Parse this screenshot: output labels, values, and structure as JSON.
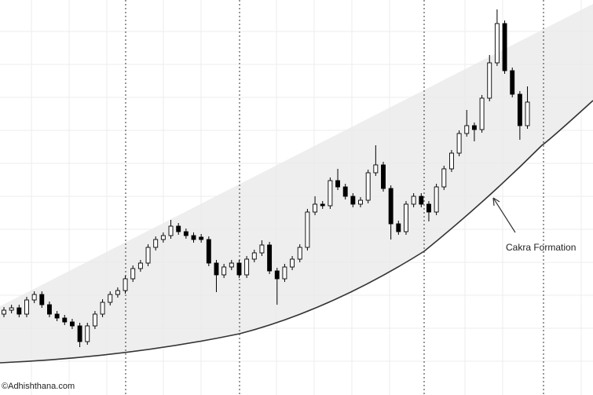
{
  "chart_data": {
    "type": "candlestick",
    "annotation": "Cakra Formation",
    "watermark": "©Adhishthana.com",
    "ylim": [
      0,
      500
    ],
    "up_color": "#ffffff",
    "down_color": "#000000",
    "ohlc": [
      [
        100,
        109,
        96,
        105
      ],
      [
        105,
        112,
        101,
        108
      ],
      [
        108,
        112,
        96,
        100
      ],
      [
        100,
        122,
        96,
        118
      ],
      [
        118,
        129,
        114,
        125
      ],
      [
        125,
        129,
        108,
        112
      ],
      [
        112,
        116,
        96,
        100
      ],
      [
        100,
        104,
        91,
        95
      ],
      [
        95,
        99,
        86,
        90
      ],
      [
        90,
        94,
        81,
        85
      ],
      [
        85,
        89,
        58,
        65
      ],
      [
        65,
        89,
        61,
        85
      ],
      [
        85,
        104,
        81,
        100
      ],
      [
        100,
        119,
        96,
        115
      ],
      [
        115,
        129,
        111,
        125
      ],
      [
        125,
        134,
        121,
        130
      ],
      [
        130,
        149,
        126,
        145
      ],
      [
        145,
        162,
        141,
        158
      ],
      [
        158,
        169,
        154,
        165
      ],
      [
        165,
        189,
        161,
        185
      ],
      [
        185,
        199,
        181,
        195
      ],
      [
        195,
        204,
        191,
        200
      ],
      [
        200,
        220,
        196,
        212
      ],
      [
        212,
        216,
        201,
        205
      ],
      [
        205,
        209,
        196,
        200
      ],
      [
        200,
        204,
        191,
        195
      ],
      [
        198,
        202,
        191,
        195
      ],
      [
        195,
        199,
        161,
        165
      ],
      [
        165,
        169,
        128,
        150
      ],
      [
        150,
        164,
        146,
        160
      ],
      [
        160,
        169,
        156,
        165
      ],
      [
        165,
        169,
        146,
        150
      ],
      [
        150,
        174,
        146,
        170
      ],
      [
        170,
        182,
        166,
        178
      ],
      [
        178,
        194,
        174,
        188
      ],
      [
        188,
        192,
        151,
        155
      ],
      [
        155,
        159,
        112,
        145
      ],
      [
        145,
        164,
        141,
        160
      ],
      [
        160,
        174,
        156,
        170
      ],
      [
        170,
        189,
        166,
        185
      ],
      [
        185,
        234,
        181,
        230
      ],
      [
        230,
        250,
        226,
        240
      ],
      [
        240,
        244,
        234,
        238
      ],
      [
        238,
        274,
        234,
        270
      ],
      [
        270,
        285,
        258,
        262
      ],
      [
        262,
        266,
        246,
        250
      ],
      [
        250,
        254,
        236,
        240
      ],
      [
        240,
        249,
        236,
        245
      ],
      [
        245,
        284,
        241,
        280
      ],
      [
        280,
        315,
        276,
        290
      ],
      [
        290,
        294,
        256,
        260
      ],
      [
        260,
        264,
        195,
        215
      ],
      [
        215,
        219,
        201,
        205
      ],
      [
        205,
        244,
        201,
        240
      ],
      [
        240,
        254,
        236,
        250
      ],
      [
        250,
        254,
        236,
        240
      ],
      [
        240,
        244,
        218,
        230
      ],
      [
        230,
        266,
        226,
        262
      ],
      [
        262,
        289,
        258,
        285
      ],
      [
        285,
        309,
        281,
        305
      ],
      [
        305,
        334,
        301,
        330
      ],
      [
        330,
        360,
        326,
        340
      ],
      [
        340,
        344,
        320,
        335
      ],
      [
        335,
        379,
        331,
        375
      ],
      [
        375,
        430,
        371,
        420
      ],
      [
        420,
        488,
        416,
        470
      ],
      [
        470,
        474,
        406,
        410
      ],
      [
        410,
        414,
        376,
        380
      ],
      [
        380,
        384,
        322,
        340
      ],
      [
        340,
        390,
        336,
        370
      ]
    ]
  }
}
